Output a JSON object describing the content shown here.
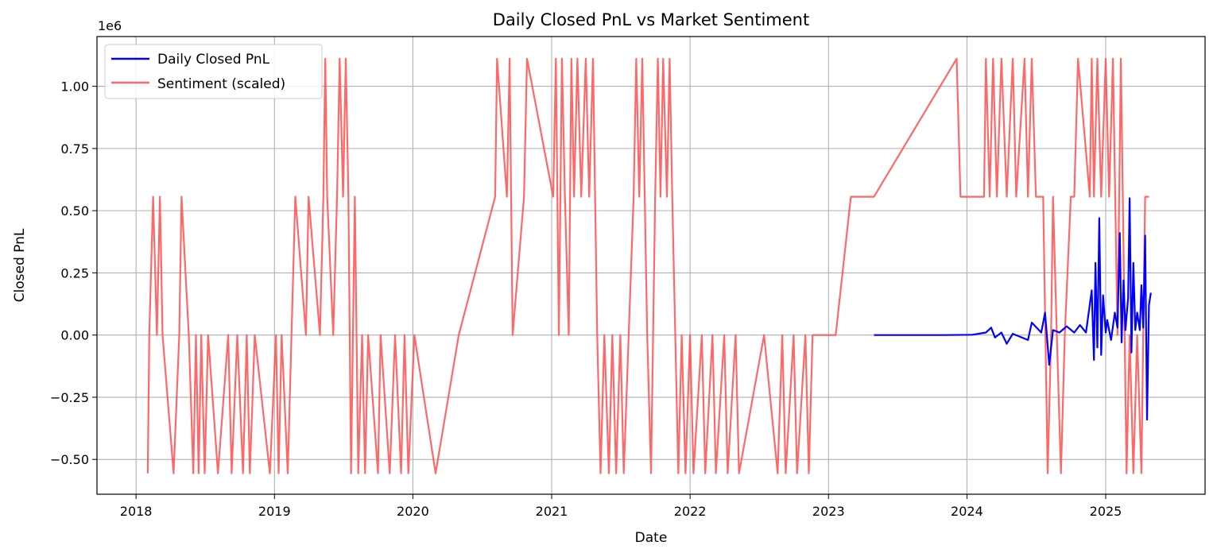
{
  "chart_data": {
    "type": "line",
    "title": "Daily Closed PnL vs Market Sentiment",
    "xlabel": "Date",
    "ylabel": "Closed PnL",
    "y_scale_label": "1e6",
    "xlim": [
      "2017-09-20",
      "2025-09-20"
    ],
    "ylim": [
      -0.64,
      1.2
    ],
    "x_ticks": [
      "2018-01-01",
      "2019-01-01",
      "2020-01-01",
      "2021-01-01",
      "2022-01-01",
      "2023-01-01",
      "2024-01-01",
      "2025-01-01"
    ],
    "x_tick_labels": [
      "2018",
      "2019",
      "2020",
      "2021",
      "2022",
      "2023",
      "2024",
      "2025"
    ],
    "y_ticks": [
      -0.5,
      -0.25,
      0,
      0.25,
      0.5,
      0.75,
      1.0
    ],
    "y_tick_labels": [
      "−0.50",
      "−0.25",
      "0.00",
      "0.25",
      "0.50",
      "0.75",
      "1.00"
    ],
    "grid": true,
    "legend_position": "top-left",
    "series": [
      {
        "name": "Sentiment (scaled)",
        "color": "#ff4d4d",
        "points": [
          [
            "2018-02-01",
            -0.556
          ],
          [
            "2018-02-05",
            0
          ],
          [
            "2018-02-15",
            0.556
          ],
          [
            "2018-02-25",
            0
          ],
          [
            "2018-03-05",
            0.556
          ],
          [
            "2018-03-12",
            0
          ],
          [
            "2018-04-10",
            -0.556
          ],
          [
            "2018-04-25",
            0
          ],
          [
            "2018-05-01",
            0.556
          ],
          [
            "2018-05-20",
            0
          ],
          [
            "2018-06-01",
            -0.556
          ],
          [
            "2018-06-08",
            0
          ],
          [
            "2018-06-15",
            -0.556
          ],
          [
            "2018-06-22",
            0
          ],
          [
            "2018-07-01",
            -0.556
          ],
          [
            "2018-07-10",
            0
          ],
          [
            "2018-08-05",
            -0.556
          ],
          [
            "2018-09-01",
            0
          ],
          [
            "2018-09-10",
            -0.556
          ],
          [
            "2018-09-25",
            0
          ],
          [
            "2018-10-10",
            -0.556
          ],
          [
            "2018-10-20",
            0
          ],
          [
            "2018-10-28",
            -0.556
          ],
          [
            "2018-11-10",
            0
          ],
          [
            "2018-12-20",
            -0.556
          ],
          [
            "2019-01-05",
            0
          ],
          [
            "2019-01-12",
            -0.556
          ],
          [
            "2019-01-20",
            0
          ],
          [
            "2019-02-05",
            -0.556
          ],
          [
            "2019-02-15",
            0
          ],
          [
            "2019-02-25",
            0.556
          ],
          [
            "2019-03-25",
            0
          ],
          [
            "2019-04-01",
            0.556
          ],
          [
            "2019-05-01",
            0
          ],
          [
            "2019-05-10",
            0.556
          ],
          [
            "2019-05-15",
            1.111
          ],
          [
            "2019-05-20",
            0.556
          ],
          [
            "2019-06-05",
            0
          ],
          [
            "2019-06-15",
            0.556
          ],
          [
            "2019-06-22",
            1.111
          ],
          [
            "2019-07-01",
            0.556
          ],
          [
            "2019-07-08",
            1.111
          ],
          [
            "2019-07-15",
            0.556
          ],
          [
            "2019-07-22",
            -0.556
          ],
          [
            "2019-08-01",
            0.556
          ],
          [
            "2019-08-10",
            -0.556
          ],
          [
            "2019-08-20",
            0
          ],
          [
            "2019-08-28",
            -0.556
          ],
          [
            "2019-09-05",
            0
          ],
          [
            "2019-10-01",
            -0.556
          ],
          [
            "2019-10-08",
            0
          ],
          [
            "2019-11-01",
            -0.556
          ],
          [
            "2019-11-15",
            0
          ],
          [
            "2019-12-01",
            -0.556
          ],
          [
            "2019-12-10",
            0
          ],
          [
            "2019-12-20",
            -0.556
          ],
          [
            "2020-01-05",
            0
          ],
          [
            "2020-03-01",
            -0.556
          ],
          [
            "2020-05-01",
            0
          ],
          [
            "2020-08-05",
            0.556
          ],
          [
            "2020-08-10",
            1.111
          ],
          [
            "2020-09-05",
            0.556
          ],
          [
            "2020-09-12",
            1.111
          ],
          [
            "2020-09-20",
            0
          ],
          [
            "2020-10-20",
            0.556
          ],
          [
            "2020-10-28",
            1.111
          ],
          [
            "2021-01-05",
            0.556
          ],
          [
            "2021-01-12",
            1.111
          ],
          [
            "2021-01-20",
            0
          ],
          [
            "2021-01-28",
            1.111
          ],
          [
            "2021-02-05",
            0.556
          ],
          [
            "2021-02-15",
            0
          ],
          [
            "2021-02-22",
            1.111
          ],
          [
            "2021-03-01",
            0.556
          ],
          [
            "2021-03-10",
            1.111
          ],
          [
            "2021-03-20",
            0.556
          ],
          [
            "2021-04-01",
            1.111
          ],
          [
            "2021-04-10",
            0.556
          ],
          [
            "2021-04-20",
            1.111
          ],
          [
            "2021-05-01",
            0
          ],
          [
            "2021-05-10",
            -0.556
          ],
          [
            "2021-05-20",
            0
          ],
          [
            "2021-06-01",
            -0.556
          ],
          [
            "2021-06-10",
            0
          ],
          [
            "2021-06-20",
            -0.556
          ],
          [
            "2021-07-01",
            0
          ],
          [
            "2021-07-10",
            -0.556
          ],
          [
            "2021-08-05",
            0.556
          ],
          [
            "2021-08-12",
            1.111
          ],
          [
            "2021-08-20",
            0.556
          ],
          [
            "2021-08-28",
            1.111
          ],
          [
            "2021-09-10",
            0
          ],
          [
            "2021-09-20",
            -0.556
          ],
          [
            "2021-10-01",
            0.556
          ],
          [
            "2021-10-08",
            1.111
          ],
          [
            "2021-10-15",
            0.556
          ],
          [
            "2021-10-22",
            1.111
          ],
          [
            "2021-11-01",
            0.556
          ],
          [
            "2021-11-08",
            1.111
          ],
          [
            "2021-11-15",
            0.556
          ],
          [
            "2021-12-01",
            -0.556
          ],
          [
            "2021-12-10",
            0
          ],
          [
            "2021-12-20",
            -0.556
          ],
          [
            "2022-01-01",
            0
          ],
          [
            "2022-01-10",
            -0.556
          ],
          [
            "2022-02-01",
            0
          ],
          [
            "2022-02-10",
            -0.556
          ],
          [
            "2022-03-01",
            0
          ],
          [
            "2022-03-10",
            -0.556
          ],
          [
            "2022-04-01",
            0
          ],
          [
            "2022-04-10",
            -0.556
          ],
          [
            "2022-05-01",
            0
          ],
          [
            "2022-05-10",
            -0.556
          ],
          [
            "2022-07-15",
            0
          ],
          [
            "2022-08-20",
            -0.556
          ],
          [
            "2022-09-01",
            0
          ],
          [
            "2022-09-10",
            -0.556
          ],
          [
            "2022-10-01",
            0
          ],
          [
            "2022-10-10",
            -0.556
          ],
          [
            "2022-11-01",
            0
          ],
          [
            "2022-11-10",
            -0.556
          ],
          [
            "2022-11-20",
            0
          ],
          [
            "2023-01-20",
            0
          ],
          [
            "2023-03-01",
            0.556
          ],
          [
            "2023-05-01",
            0.556
          ],
          [
            "2023-12-05",
            1.111
          ],
          [
            "2023-12-15",
            0.556
          ],
          [
            "2024-02-15",
            0.556
          ],
          [
            "2024-02-20",
            1.111
          ],
          [
            "2024-03-01",
            0.556
          ],
          [
            "2024-03-10",
            1.111
          ],
          [
            "2024-03-20",
            0.556
          ],
          [
            "2024-04-01",
            1.111
          ],
          [
            "2024-04-15",
            0.556
          ],
          [
            "2024-05-01",
            1.111
          ],
          [
            "2024-05-10",
            0.556
          ],
          [
            "2024-06-01",
            1.111
          ],
          [
            "2024-06-10",
            0.556
          ],
          [
            "2024-06-20",
            1.111
          ],
          [
            "2024-07-01",
            0.556
          ],
          [
            "2024-07-20",
            0.556
          ],
          [
            "2024-08-01",
            -0.556
          ],
          [
            "2024-08-10",
            0
          ],
          [
            "2024-08-15",
            0.556
          ],
          [
            "2024-08-25",
            0
          ],
          [
            "2024-09-05",
            -0.556
          ],
          [
            "2024-09-15",
            0
          ],
          [
            "2024-10-01",
            0.556
          ],
          [
            "2024-10-10",
            0.556
          ],
          [
            "2024-10-20",
            1.111
          ],
          [
            "2024-11-20",
            0.556
          ],
          [
            "2024-11-25",
            1.111
          ],
          [
            "2024-12-01",
            0.556
          ],
          [
            "2024-12-10",
            1.111
          ],
          [
            "2024-12-20",
            0.556
          ],
          [
            "2025-01-01",
            1.111
          ],
          [
            "2025-01-10",
            0.556
          ],
          [
            "2025-01-20",
            1.111
          ],
          [
            "2025-02-01",
            0
          ],
          [
            "2025-02-10",
            1.111
          ],
          [
            "2025-02-15",
            0.556
          ],
          [
            "2025-02-25",
            -0.556
          ],
          [
            "2025-03-05",
            0
          ],
          [
            "2025-03-15",
            -0.556
          ],
          [
            "2025-03-25",
            0
          ],
          [
            "2025-04-05",
            -0.556
          ],
          [
            "2025-04-10",
            0
          ],
          [
            "2025-04-15",
            0.556
          ],
          [
            "2025-04-25",
            0.556
          ]
        ]
      },
      {
        "name": "Daily Closed PnL",
        "color": "#0000ff",
        "points": [
          [
            "2023-05-01",
            0
          ],
          [
            "2023-08-01",
            0
          ],
          [
            "2023-11-01",
            0
          ],
          [
            "2024-01-15",
            0.001
          ],
          [
            "2024-02-20",
            0.01
          ],
          [
            "2024-03-05",
            0.03
          ],
          [
            "2024-03-15",
            -0.01
          ],
          [
            "2024-04-01",
            0.01
          ],
          [
            "2024-04-15",
            -0.035
          ],
          [
            "2024-05-01",
            0.005
          ],
          [
            "2024-06-10",
            -0.02
          ],
          [
            "2024-06-20",
            0.05
          ],
          [
            "2024-07-15",
            0.01
          ],
          [
            "2024-07-25",
            0.09
          ],
          [
            "2024-08-05",
            -0.12
          ],
          [
            "2024-08-15",
            0.02
          ],
          [
            "2024-09-01",
            0.01
          ],
          [
            "2024-09-20",
            0.035
          ],
          [
            "2024-10-10",
            0.01
          ],
          [
            "2024-10-25",
            0.04
          ],
          [
            "2024-11-10",
            0.01
          ],
          [
            "2024-11-25",
            0.18
          ],
          [
            "2024-12-01",
            -0.1
          ],
          [
            "2024-12-05",
            0.29
          ],
          [
            "2024-12-10",
            -0.05
          ],
          [
            "2024-12-15",
            0.47
          ],
          [
            "2024-12-20",
            -0.08
          ],
          [
            "2024-12-25",
            0.16
          ],
          [
            "2025-01-01",
            0.01
          ],
          [
            "2025-01-05",
            0.06
          ],
          [
            "2025-01-15",
            -0.02
          ],
          [
            "2025-01-25",
            0.09
          ],
          [
            "2025-02-01",
            0.03
          ],
          [
            "2025-02-07",
            0.41
          ],
          [
            "2025-02-12",
            -0.03
          ],
          [
            "2025-02-17",
            0.22
          ],
          [
            "2025-02-22",
            0.02
          ],
          [
            "2025-03-01",
            0.15
          ],
          [
            "2025-03-05",
            0.55
          ],
          [
            "2025-03-10",
            -0.07
          ],
          [
            "2025-03-15",
            0.29
          ],
          [
            "2025-03-20",
            0.02
          ],
          [
            "2025-03-25",
            0.09
          ],
          [
            "2025-04-01",
            0.02
          ],
          [
            "2025-04-05",
            0.2
          ],
          [
            "2025-04-10",
            0.03
          ],
          [
            "2025-04-15",
            0.4
          ],
          [
            "2025-04-20",
            -0.34
          ],
          [
            "2025-04-25",
            0.12
          ],
          [
            "2025-04-30",
            0.17
          ]
        ]
      }
    ]
  }
}
